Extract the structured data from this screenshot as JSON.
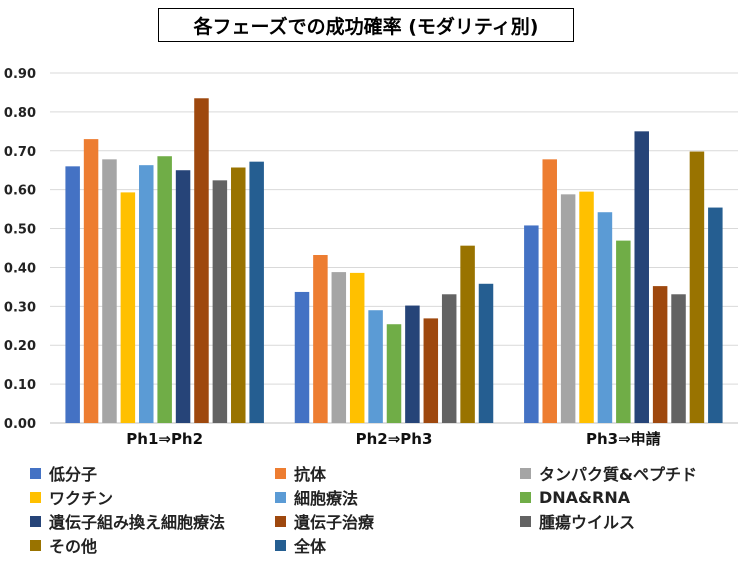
{
  "chart_data": {
    "type": "bar",
    "title": "各フェーズでの成功確率 (モダリティ別)",
    "categories": [
      "Ph1⇒Ph2",
      "Ph2⇒Ph3",
      "Ph3⇒申請"
    ],
    "ylim": [
      0,
      0.9
    ],
    "yticks": [
      "0.00",
      "0.10",
      "0.20",
      "0.30",
      "0.40",
      "0.50",
      "0.60",
      "0.70",
      "0.80",
      "0.90"
    ],
    "grid": true,
    "legend_position": "bottom",
    "series": [
      {
        "name": "低分子",
        "color": "#4472C4",
        "values": [
          0.66,
          0.337,
          0.508
        ]
      },
      {
        "name": "抗体",
        "color": "#ED7D31",
        "values": [
          0.73,
          0.432,
          0.678
        ]
      },
      {
        "name": "タンパク質&ペプチド",
        "color": "#A5A5A5",
        "values": [
          0.678,
          0.388,
          0.588
        ]
      },
      {
        "name": "ワクチン",
        "color": "#FFC000",
        "values": [
          0.593,
          0.386,
          0.595
        ]
      },
      {
        "name": "細胞療法",
        "color": "#5B9BD5",
        "values": [
          0.663,
          0.29,
          0.542
        ]
      },
      {
        "name": "DNA&RNA",
        "color": "#70AD47",
        "values": [
          0.686,
          0.254,
          0.469
        ]
      },
      {
        "name": "遺伝子組み換え細胞療法",
        "color": "#264478",
        "values": [
          0.65,
          0.302,
          0.75
        ]
      },
      {
        "name": "遺伝子治療",
        "color": "#9E480E",
        "values": [
          0.835,
          0.269,
          0.352
        ]
      },
      {
        "name": "腫瘍ウイルス",
        "color": "#636363",
        "values": [
          0.624,
          0.331,
          0.331
        ]
      },
      {
        "name": "その他",
        "color": "#997300",
        "values": [
          0.657,
          0.456,
          0.698
        ]
      },
      {
        "name": "全体",
        "color": "#255E91",
        "values": [
          0.672,
          0.358,
          0.554
        ]
      }
    ]
  }
}
